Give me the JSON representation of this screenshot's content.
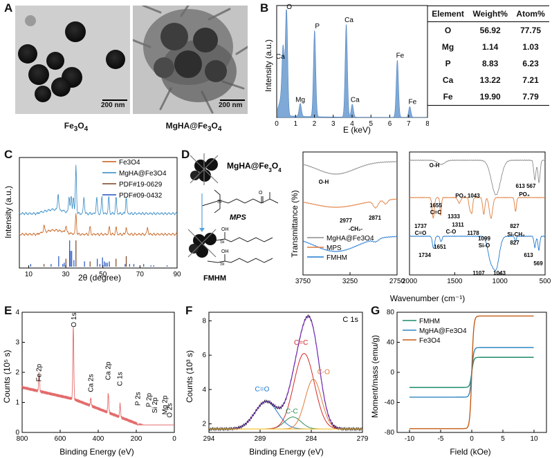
{
  "panelA": {
    "label": "A",
    "left_caption": "Fe3O4",
    "right_caption": "MgHA@Fe3O4",
    "left_scale": "200 nm",
    "right_scale": "200 nm"
  },
  "panelB": {
    "label": "B",
    "table_headers": [
      "Element",
      "Weight%",
      "Atom%"
    ],
    "table_rows": [
      [
        "O",
        "56.92",
        "77.75"
      ],
      [
        "Mg",
        "1.14",
        "1.03"
      ],
      [
        "P",
        "8.83",
        "6.23"
      ],
      [
        "Ca",
        "13.22",
        "7.21"
      ],
      [
        "Fe",
        "19.90",
        "7.79"
      ]
    ]
  },
  "panelC": {
    "label": "C"
  },
  "panelD": {
    "label": "D",
    "mol_top": "MgHA@Fe3O4",
    "mol_mid": "MPS",
    "mol_bottom": "FMHM"
  },
  "panelE": {
    "label": "E"
  },
  "panelF": {
    "label": "F"
  },
  "panelG": {
    "label": "G"
  },
  "chart_data": [
    {
      "id": "B",
      "type": "line",
      "title": "",
      "xlabel": "E (keV)",
      "ylabel": "Intensity (a.u.)",
      "xlim": [
        0,
        8
      ],
      "xticks": [
        "0",
        "1",
        "2",
        "3",
        "4",
        "5",
        "6",
        "7",
        "8"
      ],
      "peaks": [
        {
          "label": "Ca",
          "x": 0.34,
          "h": 0.52
        },
        {
          "label": "O",
          "x": 0.52,
          "h": 0.98
        },
        {
          "label": "Mg",
          "x": 1.25,
          "h": 0.12
        },
        {
          "label": "P",
          "x": 2.01,
          "h": 0.8
        },
        {
          "label": "Ca",
          "x": 3.69,
          "h": 0.86
        },
        {
          "label": "Ca",
          "x": 4.01,
          "h": 0.12
        },
        {
          "label": "Fe",
          "x": 6.4,
          "h": 0.53
        },
        {
          "label": "Fe",
          "x": 7.06,
          "h": 0.1
        }
      ]
    },
    {
      "id": "C",
      "type": "line",
      "xlabel": "2θ  (degree)",
      "ylabel": "Intensity (a.u.)",
      "xlim": [
        5,
        90
      ],
      "xticks": [
        "10",
        "30",
        "50",
        "70",
        "90"
      ],
      "legend": [
        "Fe3O4",
        "MgHA@Fe3O4",
        "PDF#19-0629",
        "PDF#09-0432"
      ],
      "colors": [
        "#c55a11",
        "#2e86c1",
        "#7b3f1d",
        "#1f4fbf"
      ],
      "fe3o4_peaks": [
        18.3,
        30.1,
        35.5,
        43.1,
        53.5,
        57.1,
        62.6,
        74.1
      ],
      "mgha_peaks": [
        25.9,
        31.8,
        32.9,
        34.1,
        35.5,
        39.8,
        46.7,
        49.5,
        53.2,
        57.1,
        62.6
      ],
      "pdf_19_0629": [
        {
          "x": 18.3,
          "h": 0.1
        },
        {
          "x": 30.1,
          "h": 0.3
        },
        {
          "x": 35.5,
          "h": 1.0
        },
        {
          "x": 43.1,
          "h": 0.2
        },
        {
          "x": 53.5,
          "h": 0.1
        },
        {
          "x": 57.1,
          "h": 0.3
        },
        {
          "x": 62.6,
          "h": 0.4
        }
      ],
      "pdf_09_0432": [
        {
          "x": 10.8,
          "h": 0.1
        },
        {
          "x": 21.8,
          "h": 0.1
        },
        {
          "x": 25.9,
          "h": 0.4
        },
        {
          "x": 28.1,
          "h": 0.1
        },
        {
          "x": 28.9,
          "h": 0.15
        },
        {
          "x": 31.8,
          "h": 1.0
        },
        {
          "x": 32.2,
          "h": 0.6
        },
        {
          "x": 32.9,
          "h": 0.6
        },
        {
          "x": 34.1,
          "h": 0.25
        },
        {
          "x": 39.8,
          "h": 0.2
        },
        {
          "x": 46.7,
          "h": 0.3
        },
        {
          "x": 48.1,
          "h": 0.1
        },
        {
          "x": 49.5,
          "h": 0.35
        },
        {
          "x": 50.5,
          "h": 0.2
        },
        {
          "x": 51.3,
          "h": 0.15
        },
        {
          "x": 52.1,
          "h": 0.15
        },
        {
          "x": 53.2,
          "h": 0.2
        },
        {
          "x": 61.7,
          "h": 0.1
        },
        {
          "x": 64.1,
          "h": 0.1
        },
        {
          "x": 66.4,
          "h": 0.1
        },
        {
          "x": 71.7,
          "h": 0.1
        },
        {
          "x": 75.6,
          "h": 0.05
        },
        {
          "x": 77.1,
          "h": 0.05
        },
        {
          "x": 84.3,
          "h": 0.05
        }
      ]
    },
    {
      "id": "D",
      "type": "line",
      "xlabel": "Wavenumber (cm⁻¹)",
      "ylabel": "Transmittance (%)",
      "left_xticks": [
        "3750",
        "3250",
        "2750"
      ],
      "right_xticks": [
        "2000",
        "1500",
        "1000",
        "500"
      ],
      "legend": [
        "MgHA@Fe3O4",
        "MPS",
        "FMHM"
      ],
      "colors": [
        "#8c8c8c",
        "#e07b39",
        "#1f78d1"
      ],
      "annotations": [
        "O-H",
        "O-H",
        "PO4 1043",
        "613 PO4 567",
        "2977 -CH2-",
        "2871",
        "1655 C=C",
        "1737 C=O",
        "1333",
        "1311 C-O",
        "1178",
        "1099 Si-O",
        "827 Si-CH2",
        "1651",
        "1734",
        "827",
        "613",
        "569",
        "1107",
        "1043"
      ]
    },
    {
      "id": "E",
      "type": "line",
      "xlabel": "Binding Energy (eV)",
      "ylabel": "Counts (10⁵ s)",
      "xlim": [
        800,
        0
      ],
      "ylim": [
        0,
        4
      ],
      "xticks": [
        "800",
        "600",
        "400",
        "200",
        "0"
      ],
      "yticks": [
        "0",
        "1",
        "2",
        "3",
        "4"
      ],
      "peaks": [
        {
          "label": "Fe 2p",
          "x": 711,
          "y": 1.6
        },
        {
          "label": "O 1s",
          "x": 531,
          "y": 3.45
        },
        {
          "label": "Ca 2s",
          "x": 439,
          "y": 1.25
        },
        {
          "label": "Ca 2p",
          "x": 347,
          "y": 1.65
        },
        {
          "label": "C 1s",
          "x": 285,
          "y": 1.45
        },
        {
          "label": "P 2s",
          "x": 190,
          "y": 0.8
        },
        {
          "label": "P 2p",
          "x": 133,
          "y": 0.75
        },
        {
          "label": "Si 2p",
          "x": 102,
          "y": 0.55
        },
        {
          "label": "Mg 2p",
          "x": 50,
          "y": 0.5
        },
        {
          "label": "O 2s",
          "x": 24,
          "y": 0.4
        }
      ]
    },
    {
      "id": "F",
      "type": "line",
      "title": "C 1s",
      "xlabel": "Binding Energy (eV)",
      "ylabel": "Counts (10³ s)",
      "xlim": [
        294,
        279
      ],
      "ylim": [
        1.5,
        8.5
      ],
      "xticks": [
        "294",
        "289",
        "284",
        "279"
      ],
      "yticks": [
        "2",
        "4",
        "6",
        "8"
      ],
      "components": [
        {
          "label": "C=O",
          "center": 288.4,
          "height": 1.6,
          "width": 1.1,
          "color": "#1f78d1"
        },
        {
          "label": "C-C",
          "center": 285.8,
          "height": 0.7,
          "width": 0.8,
          "color": "#2e8b57"
        },
        {
          "label": "C=C",
          "center": 284.7,
          "height": 4.4,
          "width": 1.0,
          "color": "#d62728"
        },
        {
          "label": "C-O",
          "center": 283.8,
          "height": 2.9,
          "width": 0.8,
          "color": "#e07b39"
        }
      ],
      "baseline": 1.7
    },
    {
      "id": "G",
      "type": "line",
      "xlabel": "Field (kOe)",
      "ylabel": "Moment/mass (emu/g)",
      "xlim": [
        -12,
        12
      ],
      "ylim": [
        -80,
        80
      ],
      "xticks": [
        "-10",
        "-5",
        "0",
        "5",
        "10"
      ],
      "yticks": [
        "-80",
        "-40",
        "0",
        "40",
        "80"
      ],
      "series": [
        {
          "name": "FMHM",
          "ms": 20,
          "color": "#1b8a6b"
        },
        {
          "name": "MgHA@Fe3O4",
          "ms": 33,
          "color": "#2e86c1"
        },
        {
          "name": "Fe3O4",
          "ms": 75,
          "color": "#c55a11"
        }
      ]
    }
  ]
}
